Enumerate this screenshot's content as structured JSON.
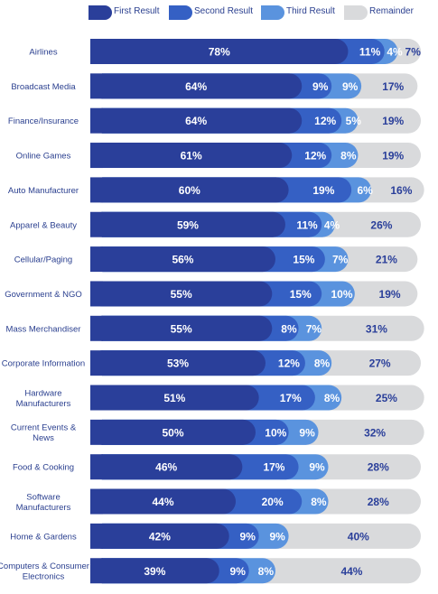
{
  "chart_data": {
    "type": "bar",
    "stacked": true,
    "orientation": "horizontal",
    "title": "",
    "xlabel": "",
    "ylabel": "",
    "xlim": [
      0,
      100
    ],
    "legend_position": "top",
    "grid": false,
    "categories": [
      "Airlines",
      "Broadcast Media",
      "Finance/Insurance",
      "Online Games",
      "Auto Manufacturer",
      "Apparel & Beauty",
      "Cellular/Paging",
      "Government & NGO",
      "Mass Merchandiser",
      "Corporate Information",
      "Hardware\nManufacturers",
      "Current Events &\nNews",
      "Food & Cooking",
      "Software\nManufacturers",
      "Home & Gardens",
      "Computers & Consumer\nElectronics"
    ],
    "series": [
      {
        "name": "First Result",
        "color": "#2a3f9a",
        "text_color": "#ffffff",
        "values": [
          78,
          64,
          64,
          61,
          60,
          59,
          56,
          55,
          55,
          53,
          51,
          50,
          46,
          44,
          42,
          39
        ]
      },
      {
        "name": "Second Result",
        "color": "#3560c4",
        "text_color": "#ffffff",
        "values": [
          11,
          9,
          12,
          12,
          19,
          11,
          15,
          15,
          8,
          12,
          17,
          10,
          17,
          20,
          9,
          9
        ]
      },
      {
        "name": "Third Result",
        "color": "#5a93de",
        "text_color": "#ffffff",
        "values": [
          4,
          9,
          5,
          8,
          6,
          4,
          7,
          10,
          7,
          8,
          8,
          9,
          9,
          8,
          9,
          8
        ]
      },
      {
        "name": "Remainder",
        "color": "#d9dadc",
        "text_color": "#2a3f9a",
        "values": [
          7,
          17,
          19,
          19,
          16,
          26,
          21,
          19,
          31,
          27,
          25,
          32,
          28,
          28,
          40,
          44
        ]
      }
    ]
  }
}
